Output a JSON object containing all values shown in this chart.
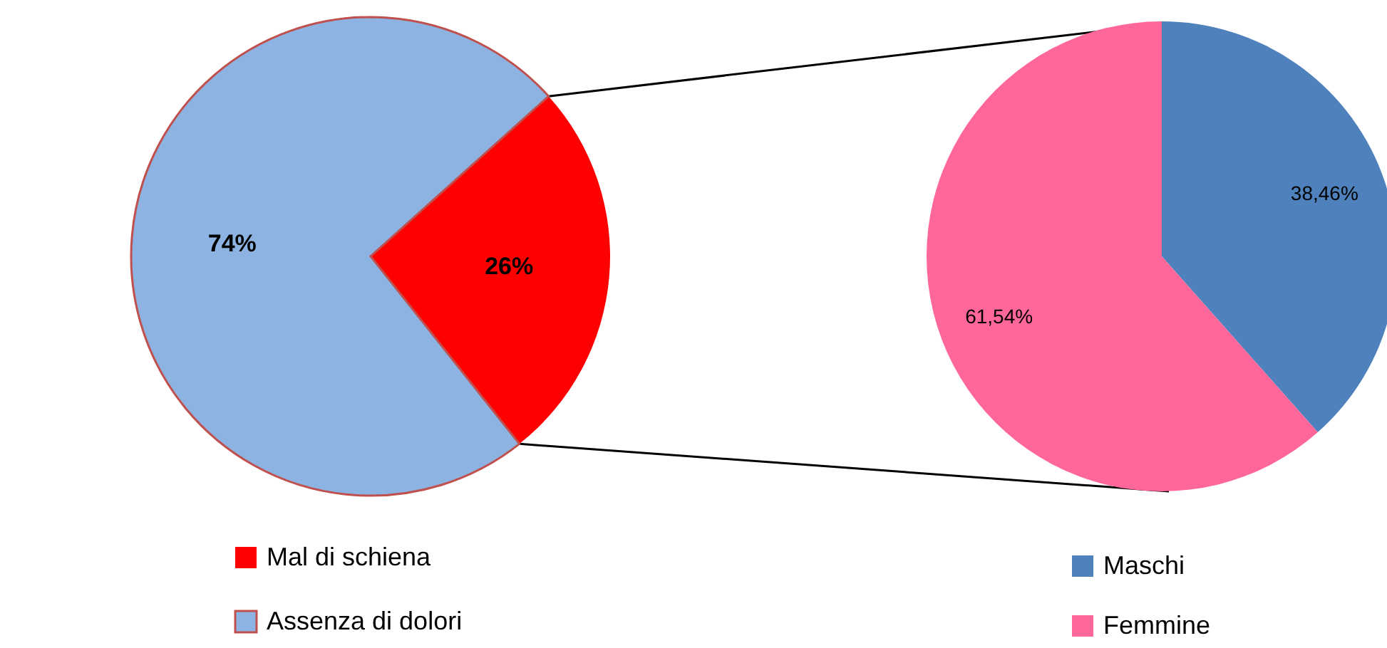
{
  "chart_data": [
    {
      "type": "pie",
      "categories": [
        "Mal di schiena",
        "Assenza di dolori"
      ],
      "values": [
        26,
        74
      ],
      "colors": [
        "#ff0000",
        "#8db3e2"
      ],
      "value_labels": [
        "26%",
        "74%"
      ],
      "legend": "bottom"
    },
    {
      "type": "pie",
      "categories": [
        "Maschi",
        "Femmine"
      ],
      "values": [
        38.46,
        61.54
      ],
      "colors": [
        "#4f81bd",
        "#ff6699"
      ],
      "value_labels": [
        "38,46%",
        "61,54%"
      ],
      "legend": "bottom"
    }
  ]
}
